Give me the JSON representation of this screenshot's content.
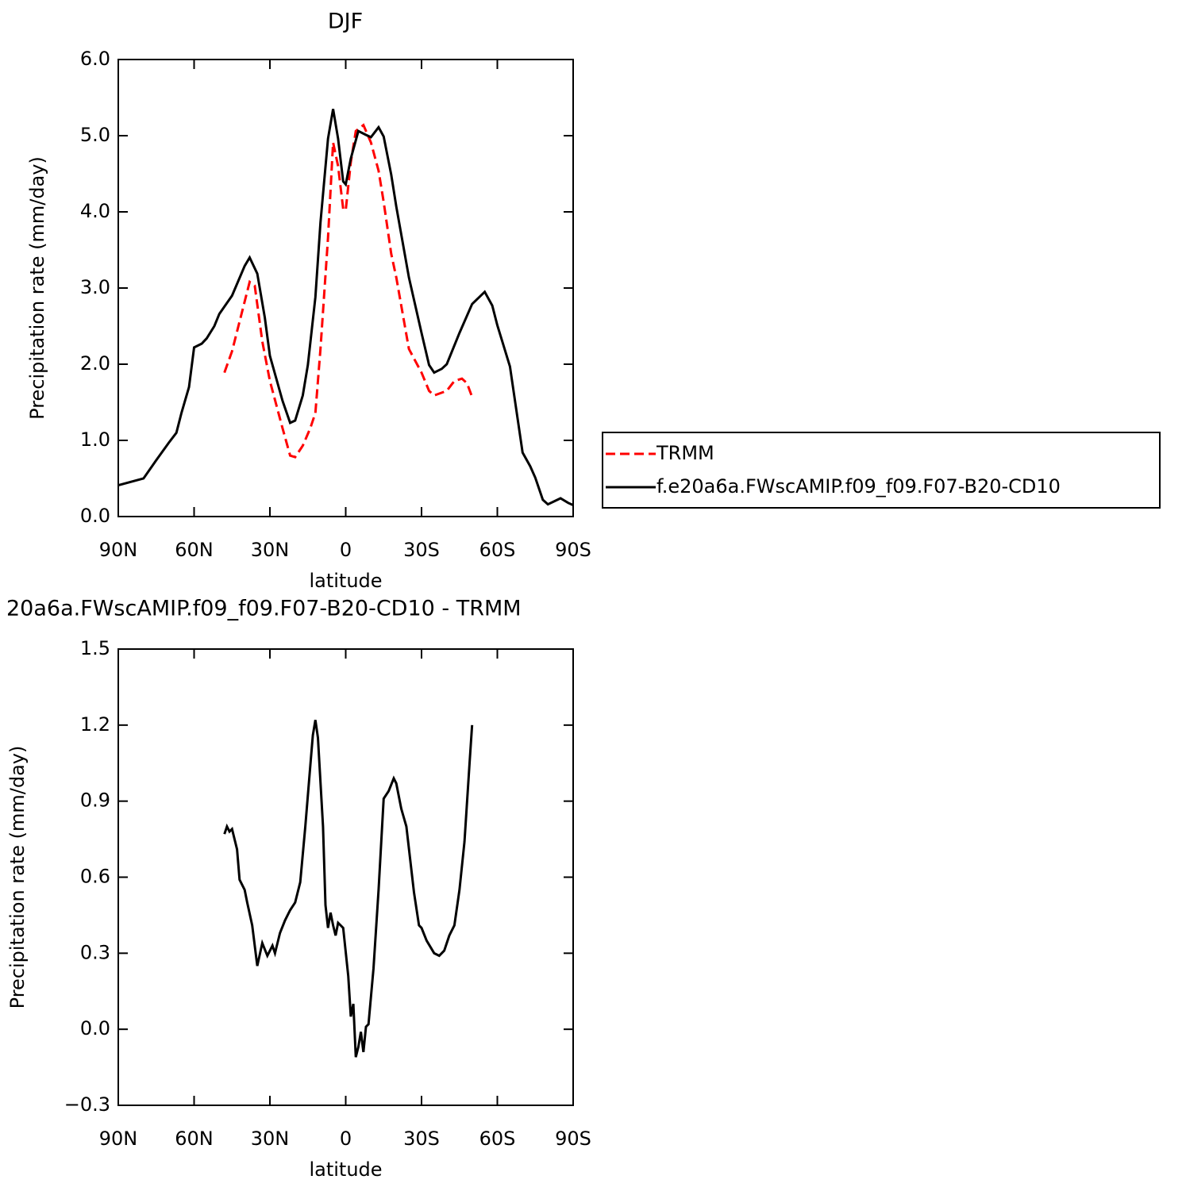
{
  "chart_data": [
    {
      "type": "line",
      "title": "DJF",
      "ylabel": "Precipitation rate (mm/day)",
      "xlabel": "latitude",
      "xlim": [
        90,
        -90
      ],
      "xticks": [
        {
          "value": 90,
          "label": "90N"
        },
        {
          "value": 60,
          "label": "60N"
        },
        {
          "value": 30,
          "label": "30N"
        },
        0,
        {
          "value": -30,
          "label": "30S"
        },
        {
          "value": -60,
          "label": "60S"
        },
        {
          "value": -90,
          "label": "90S"
        }
      ],
      "ylim": [
        0,
        6
      ],
      "yticks": [
        {
          "value": 0,
          "label": "0.0"
        },
        {
          "value": 1,
          "label": "1.0"
        },
        {
          "value": 2,
          "label": "2.0"
        },
        {
          "value": 3,
          "label": "3.0"
        },
        {
          "value": 4,
          "label": "4.0"
        },
        {
          "value": 5,
          "label": "5.0"
        },
        {
          "value": 6,
          "label": "6.0"
        }
      ],
      "legend": "right",
      "series": [
        {
          "name": "TRMM",
          "color": "#ff0000",
          "linestyle": "dashed",
          "x": [
            48,
            45,
            42,
            38,
            36,
            33,
            30,
            25,
            22,
            20,
            17,
            14,
            12,
            10,
            7,
            5,
            3,
            1,
            0,
            -2,
            -4,
            -7,
            -10,
            -13,
            -15,
            -18,
            -20,
            -25,
            -30,
            -33,
            -35,
            -40,
            -43,
            -46,
            -48,
            -50
          ],
          "values": [
            1.89,
            2.17,
            2.56,
            3.08,
            3.03,
            2.3,
            1.78,
            1.16,
            0.8,
            0.78,
            0.93,
            1.16,
            1.36,
            2.2,
            3.66,
            4.91,
            4.6,
            4.04,
            4.02,
            4.65,
            5.06,
            5.14,
            4.91,
            4.54,
            4.13,
            3.45,
            3.14,
            2.2,
            1.89,
            1.65,
            1.59,
            1.65,
            1.78,
            1.81,
            1.75,
            1.57
          ]
        },
        {
          "name": "f.e20a6a.FWscAMIP.f09_f09.F07-B20-CD10",
          "color": "#000000",
          "linestyle": "solid",
          "x": [
            90,
            80,
            75,
            70,
            67,
            65,
            62,
            60,
            57,
            55,
            52,
            50,
            45,
            40,
            38,
            35,
            32,
            30,
            25,
            22,
            20,
            17,
            15,
            12,
            10,
            7,
            5,
            3,
            1,
            0,
            -2,
            -5,
            -8,
            -10,
            -13,
            -15,
            -18,
            -20,
            -25,
            -30,
            -33,
            -35,
            -38,
            -40,
            -45,
            -50,
            -55,
            -58,
            -60,
            -65,
            -70,
            -73,
            -75,
            -78,
            -80,
            -85,
            -88,
            -90
          ],
          "values": [
            0.41,
            0.5,
            0.74,
            0.97,
            1.1,
            1.36,
            1.7,
            2.22,
            2.27,
            2.34,
            2.5,
            2.66,
            2.9,
            3.29,
            3.4,
            3.19,
            2.61,
            2.11,
            1.52,
            1.23,
            1.26,
            1.59,
            1.99,
            2.88,
            3.86,
            4.96,
            5.35,
            4.96,
            4.4,
            4.36,
            4.7,
            5.06,
            5.01,
            4.98,
            5.11,
            4.99,
            4.49,
            4.07,
            3.14,
            2.41,
            1.99,
            1.89,
            1.94,
            2.0,
            2.41,
            2.79,
            2.95,
            2.77,
            2.51,
            1.97,
            0.84,
            0.66,
            0.51,
            0.22,
            0.16,
            0.24,
            0.18,
            0.15
          ]
        }
      ]
    },
    {
      "type": "line",
      "title": "20a6a.FWscAMIP.f09_f09.F07-B20-CD10 - TRMM",
      "ylabel": "Precipitation rate (mm/day)",
      "xlabel": "latitude",
      "xlim": [
        90,
        -90
      ],
      "xticks": [
        {
          "value": 90,
          "label": "90N"
        },
        {
          "value": 60,
          "label": "60N"
        },
        {
          "value": 30,
          "label": "30N"
        },
        0,
        {
          "value": -30,
          "label": "30S"
        },
        {
          "value": -60,
          "label": "60S"
        },
        {
          "value": -90,
          "label": "90S"
        }
      ],
      "ylim": [
        -0.3,
        1.5
      ],
      "yticks": [
        {
          "value": -0.3,
          "label": "−0.3"
        },
        {
          "value": 0,
          "label": "0.0"
        },
        0.3,
        0.6,
        0.9,
        1.2,
        1.5
      ],
      "series": [
        {
          "color": "#000000",
          "linestyle": "solid",
          "x": [
            48,
            47,
            46,
            45,
            43,
            42,
            40,
            39,
            37,
            35,
            33,
            31,
            29,
            28,
            26,
            24,
            22,
            20,
            18,
            16,
            14,
            13,
            12,
            11,
            9,
            8,
            7,
            6,
            5,
            4,
            3,
            1,
            -1,
            -2,
            -3,
            -4,
            -5,
            -6,
            -7,
            -8,
            -9,
            -11,
            -13,
            -15,
            -17,
            -19,
            -20,
            -22,
            -24,
            -27,
            -29,
            -30,
            -32,
            -35,
            -37,
            -39,
            -41,
            -43,
            -45,
            -47,
            -49,
            -50
          ],
          "values": [
            0.77,
            0.8,
            0.78,
            0.79,
            0.71,
            0.59,
            0.55,
            0.5,
            0.41,
            0.25,
            0.34,
            0.29,
            0.33,
            0.3,
            0.38,
            0.43,
            0.47,
            0.5,
            0.58,
            0.8,
            1.04,
            1.16,
            1.22,
            1.15,
            0.8,
            0.49,
            0.4,
            0.46,
            0.41,
            0.37,
            0.42,
            0.4,
            0.21,
            0.05,
            0.1,
            -0.11,
            -0.07,
            -0.01,
            -0.09,
            0.01,
            0.02,
            0.24,
            0.55,
            0.91,
            0.94,
            0.99,
            0.97,
            0.87,
            0.8,
            0.54,
            0.41,
            0.4,
            0.35,
            0.3,
            0.29,
            0.31,
            0.37,
            0.41,
            0.55,
            0.74,
            1.05,
            1.2
          ]
        }
      ]
    }
  ]
}
